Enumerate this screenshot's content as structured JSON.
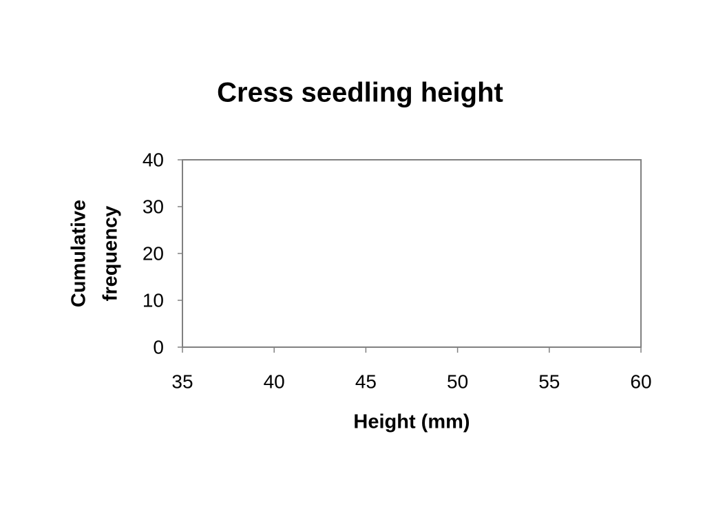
{
  "chart_data": {
    "type": "scatter",
    "title": "Cress seedling height",
    "xlabel": "Height (mm)",
    "ylabel": [
      "Cumulative",
      "frequency"
    ],
    "xlim": [
      35,
      60
    ],
    "xticks": [
      35,
      40,
      45,
      50,
      55,
      60
    ],
    "ylim": [
      0,
      40
    ],
    "yticks": [
      0,
      10,
      20,
      30,
      40
    ],
    "frame_color": "#808080"
  }
}
